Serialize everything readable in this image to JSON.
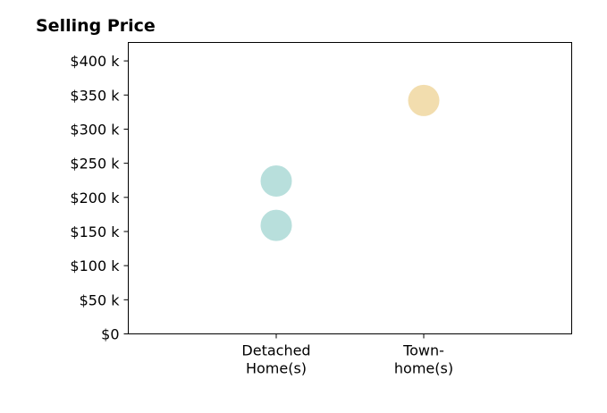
{
  "chart_data": {
    "type": "scatter",
    "title": "Selling Price",
    "xlabel": "",
    "ylabel": "",
    "categories": [
      [
        "Detached",
        "Home(s)"
      ],
      [
        "Town-",
        "home(s)"
      ]
    ],
    "y_ticks": [
      "$0",
      "$50 k",
      "$100 k",
      "$150 k",
      "$200 k",
      "$250 k",
      "$300 k",
      "$350 k",
      "$400 k"
    ],
    "y_tick_values": [
      0,
      50000,
      100000,
      150000,
      200000,
      250000,
      300000,
      350000,
      400000
    ],
    "ylim": [
      0,
      427000
    ],
    "grid": false,
    "points": [
      {
        "category": 0,
        "y": 159000,
        "color": "#b8dfdc"
      },
      {
        "category": 0,
        "y": 224000,
        "color": "#b8dfdc"
      },
      {
        "category": 1,
        "y": 342000,
        "color": "#f2ddae"
      }
    ],
    "colors": {
      "detached": "#b8dfdc",
      "townhome": "#f2ddae"
    }
  }
}
